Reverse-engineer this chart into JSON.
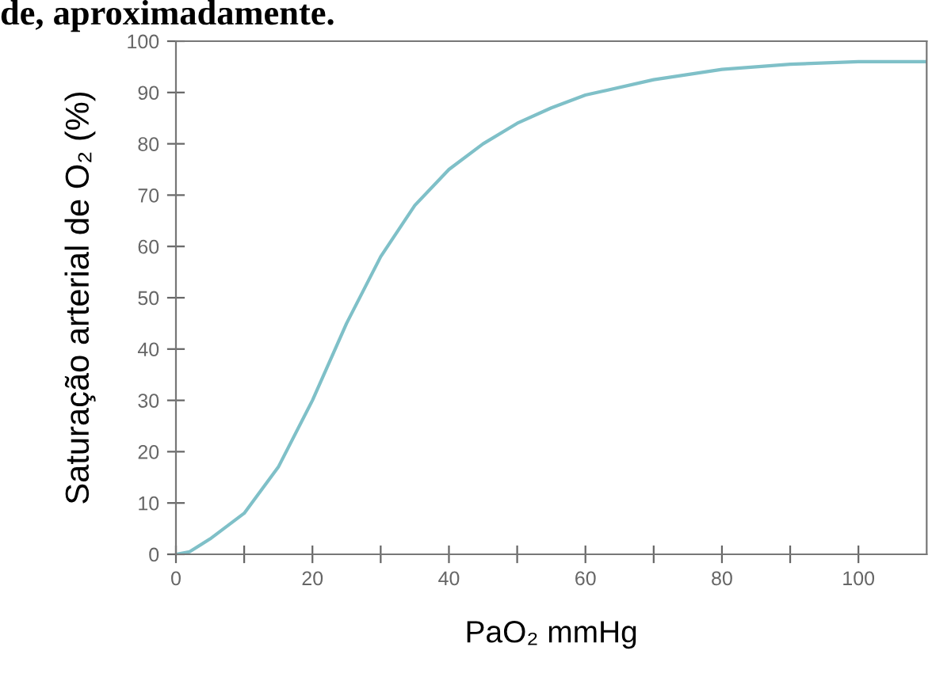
{
  "chart_data": {
    "type": "line",
    "xlabel": "PaO₂ mmHg",
    "ylabel": "Saturação arterial de O₂ (%)",
    "annotations": [
      "de, aproximadamente."
    ],
    "x": [
      0,
      2,
      5,
      10,
      15,
      20,
      25,
      30,
      35,
      40,
      45,
      50,
      55,
      60,
      70,
      80,
      90,
      100,
      110
    ],
    "series": [
      {
        "color": "#7fc0c8",
        "values": [
          0,
          0.5,
          3,
          8,
          17,
          30,
          45,
          58,
          68,
          75,
          80,
          84,
          87,
          89.5,
          92.5,
          94.5,
          95.5,
          96,
          96
        ]
      }
    ],
    "xlim": [
      0,
      110
    ],
    "xticks": [
      0,
      {
        "value": 10,
        "label": null
      },
      20,
      {
        "value": 30,
        "label": null
      },
      40,
      {
        "value": 50,
        "label": null
      },
      60,
      {
        "value": 70,
        "label": null
      },
      80,
      {
        "value": 90,
        "label": null
      },
      100
    ],
    "ylim": [
      0,
      100
    ],
    "yticks": [
      0,
      10,
      20,
      30,
      40,
      50,
      60,
      70,
      80,
      90,
      100
    ],
    "grid": false,
    "legend": false,
    "marker": "none",
    "line_style": "solid"
  }
}
